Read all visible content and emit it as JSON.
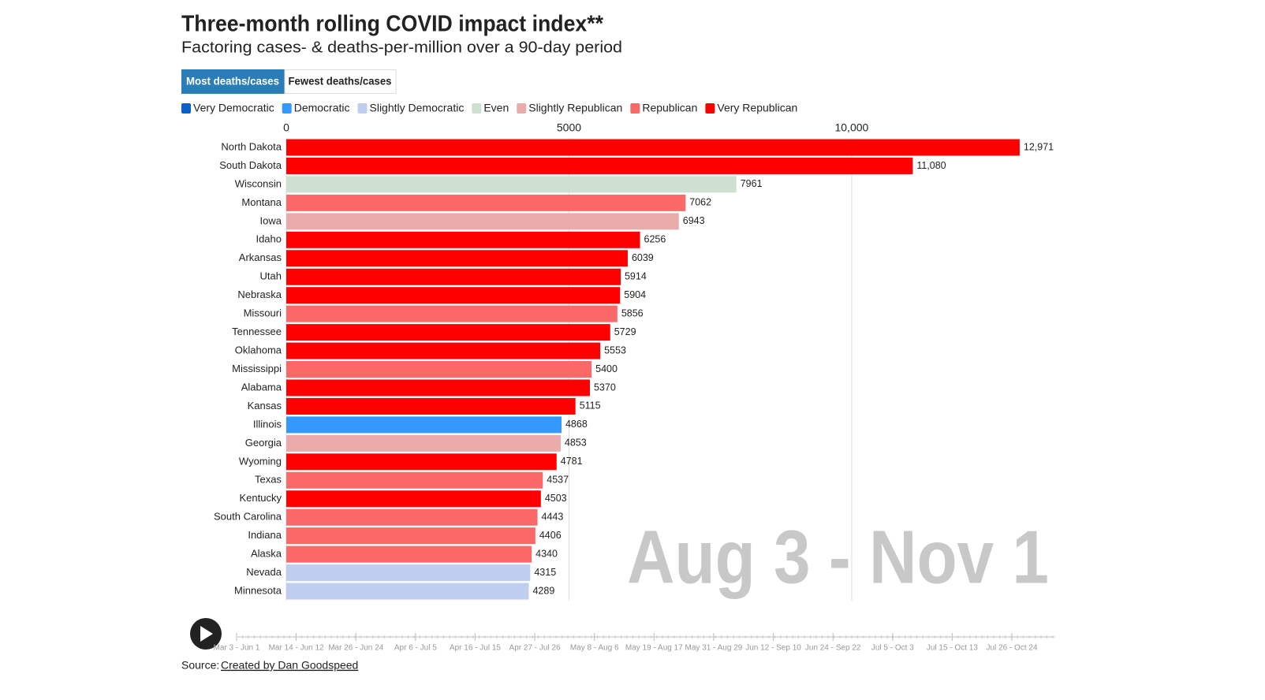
{
  "chart_data": {
    "type": "bar",
    "title": "Three-month rolling COVID impact index**",
    "subtitle": "Factoring cases- & deaths-per-million over a 90-day period",
    "buttons": [
      "Most deaths/cases",
      "Fewest deaths/cases"
    ],
    "legend": [
      {
        "name": "Very Democratic",
        "color": "#0b5fc7"
      },
      {
        "name": "Democratic",
        "color": "#3399ff"
      },
      {
        "name": "Slightly Democratic",
        "color": "#bfcdee"
      },
      {
        "name": "Even",
        "color": "#cfe0d3"
      },
      {
        "name": "Slightly Republican",
        "color": "#eaabab"
      },
      {
        "name": "Republican",
        "color": "#fb6868"
      },
      {
        "name": "Very Republican",
        "color": "#ff0000"
      }
    ],
    "categories": [
      "North Dakota",
      "South Dakota",
      "Wisconsin",
      "Montana",
      "Iowa",
      "Idaho",
      "Arkansas",
      "Utah",
      "Nebraska",
      "Missouri",
      "Tennessee",
      "Oklahoma",
      "Mississippi",
      "Alabama",
      "Kansas",
      "Illinois",
      "Georgia",
      "Wyoming",
      "Texas",
      "Kentucky",
      "South Carolina",
      "Indiana",
      "Alaska",
      "Nevada",
      "Minnesota"
    ],
    "values": [
      12971,
      11080,
      7961,
      7062,
      6943,
      6256,
      6039,
      5914,
      5904,
      5856,
      5729,
      5553,
      5400,
      5370,
      5115,
      4868,
      4853,
      4781,
      4537,
      4503,
      4443,
      4406,
      4340,
      4315,
      4289
    ],
    "value_labels": [
      "12,971",
      "11,080",
      "7961",
      "7062",
      "6943",
      "6256",
      "6039",
      "5914",
      "5904",
      "5856",
      "5729",
      "5553",
      "5400",
      "5370",
      "5115",
      "4868",
      "4853",
      "4781",
      "4537",
      "4503",
      "4443",
      "4406",
      "4340",
      "4315",
      "4289"
    ],
    "colors": [
      "#ff0000",
      "#ff0000",
      "#cfe0d3",
      "#fb6868",
      "#eaabab",
      "#ff0000",
      "#ff0000",
      "#ff0000",
      "#ff0000",
      "#fb6868",
      "#ff0000",
      "#ff0000",
      "#fb6868",
      "#ff0000",
      "#ff0000",
      "#3399ff",
      "#eaabab",
      "#ff0000",
      "#fb6868",
      "#ff0000",
      "#fb6868",
      "#fb6868",
      "#fb6868",
      "#bfcdee",
      "#bfcdee"
    ],
    "xlim": [
      0,
      13600
    ],
    "xticks": [
      0,
      5000,
      {
        "value": 10000,
        "label": "10,000"
      }
    ],
    "grid": true,
    "period": "Aug 3 - Nov 1",
    "timeline": [
      "Mar 3 - Jun 1",
      "Mar 14 - Jun 12",
      "Mar 26 - Jun 24",
      "Apr 6 - Jul 5",
      "Apr 16 - Jul 15",
      "Apr 27 - Jul 26",
      "May 8 - Aug 6",
      "May 19 - Aug 17",
      "May 31 - Aug 29",
      "Jun 12 - Sep 10",
      "Jun 24 - Sep 22",
      "Jul 5 - Oct 3",
      "Jul 15 - Oct 13",
      "Jul 26 - Oct 24"
    ],
    "source_label": "Source:",
    "source_link": "Created by Dan Goodspeed"
  }
}
